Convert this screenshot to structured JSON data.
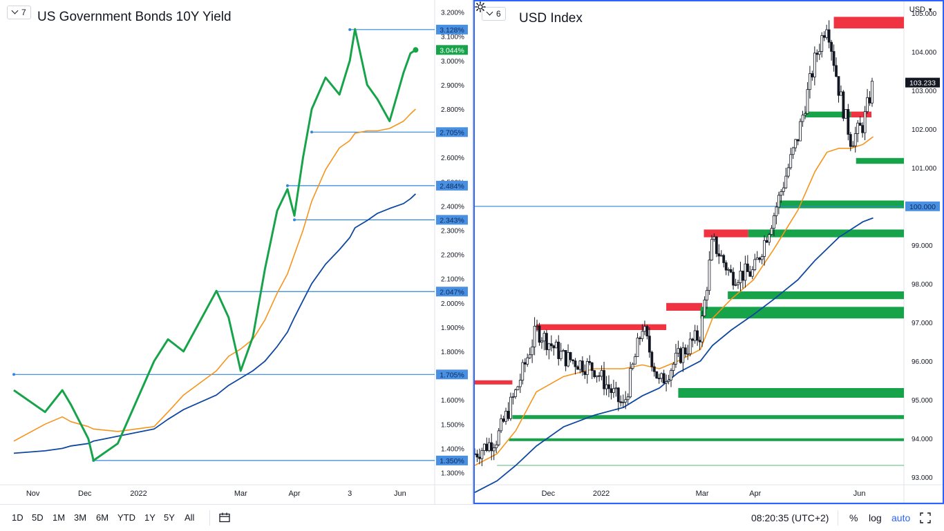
{
  "left_chart": {
    "counter": "7",
    "title": "US Government Bonds 10Y Yield"
  },
  "right_chart": {
    "counter": "6",
    "title": "USD Index",
    "currency": "USD"
  },
  "bottom_bar": {
    "timeframes": [
      "1D",
      "5D",
      "1M",
      "3M",
      "6M",
      "YTD",
      "1Y",
      "5Y",
      "All"
    ],
    "time": "08:20:35 (UTC+2)",
    "percent": "%",
    "log": "log",
    "auto": "auto"
  },
  "colors": {
    "price_line": "#16a34a",
    "ma_fast": "#f7931a",
    "ma_slow": "#0d47a1",
    "level_line": "#2e86de",
    "label_bg": "#4a90e2",
    "resistance": "#ef3340",
    "support": "#16a34a",
    "accent": "#2962ff"
  },
  "chart_data": [
    {
      "type": "line",
      "title": "US Government Bonds 10Y Yield",
      "unit": "%",
      "ylim": [
        1.25,
        3.25
      ],
      "y_ticks": [
        "3.200%",
        "3.100%",
        "3.000%",
        "2.900%",
        "2.800%",
        "2.700%",
        "2.600%",
        "2.500%",
        "2.400%",
        "2.300%",
        "2.200%",
        "2.100%",
        "2.000%",
        "1.900%",
        "1.800%",
        "1.700%",
        "1.600%",
        "1.500%",
        "1.400%",
        "1.300%"
      ],
      "x_ticks": [
        "Nov",
        "Dec",
        "2022",
        "Mar",
        "Apr",
        "3",
        "Jun"
      ],
      "x": [
        "2021-10-21",
        "2021-11-08",
        "2021-11-18",
        "2021-11-23",
        "2021-12-03",
        "2021-12-06",
        "2021-12-20",
        "2022-01-10",
        "2022-01-18",
        "2022-01-27",
        "2022-02-15",
        "2022-02-22",
        "2022-03-01",
        "2022-03-08",
        "2022-03-15",
        "2022-03-22",
        "2022-03-28",
        "2022-04-01",
        "2022-04-06",
        "2022-04-11",
        "2022-04-19",
        "2022-04-27",
        "2022-05-03",
        "2022-05-06",
        "2022-05-13",
        "2022-05-19",
        "2022-05-26",
        "2022-06-03",
        "2022-06-07",
        "2022-06-10"
      ],
      "series": [
        {
          "values": [
            1.64,
            1.55,
            1.64,
            1.58,
            1.44,
            1.35,
            1.42,
            1.76,
            1.85,
            1.8,
            2.05,
            1.94,
            1.72,
            1.86,
            2.14,
            2.38,
            2.47,
            2.36,
            2.6,
            2.8,
            2.93,
            2.86,
            3.0,
            3.13,
            2.9,
            2.84,
            2.75,
            2.95,
            3.03,
            3.044
          ]
        },
        {
          "values": [
            1.43,
            1.5,
            1.53,
            1.51,
            1.49,
            1.48,
            1.47,
            1.49,
            1.55,
            1.62,
            1.72,
            1.78,
            1.81,
            1.85,
            1.93,
            2.04,
            2.12,
            2.2,
            2.3,
            2.42,
            2.55,
            2.64,
            2.67,
            2.7,
            2.71,
            2.71,
            2.72,
            2.75,
            2.78,
            2.8
          ]
        },
        {
          "values": [
            1.38,
            1.39,
            1.4,
            1.41,
            1.42,
            1.43,
            1.45,
            1.48,
            1.52,
            1.56,
            1.62,
            1.66,
            1.69,
            1.72,
            1.76,
            1.82,
            1.88,
            1.94,
            2.01,
            2.08,
            2.16,
            2.22,
            2.27,
            2.31,
            2.34,
            2.37,
            2.39,
            2.41,
            2.43,
            2.45
          ]
        }
      ],
      "levels": [
        "3.128%",
        "2.705%",
        "2.484%",
        "2.343%",
        "2.047%",
        "1.705%",
        "1.350%"
      ],
      "level_values": [
        3.128,
        2.705,
        2.484,
        2.343,
        2.047,
        1.705,
        1.35
      ],
      "last_value": "3.044%"
    },
    {
      "type": "line",
      "title": "USD Index",
      "ylim": [
        92.8,
        105.3
      ],
      "y_ticks": [
        "105.000",
        "104.000",
        "103.000",
        "102.000",
        "101.000",
        "100.000",
        "99.000",
        "98.000",
        "97.000",
        "96.000",
        "95.000",
        "94.000",
        "93.000"
      ],
      "x_ticks": [
        "Dec",
        "2022",
        "Mar",
        "Apr",
        "Jun"
      ],
      "x": [
        "2021-10-19",
        "2021-11-01",
        "2021-11-12",
        "2021-11-24",
        "2021-12-10",
        "2021-12-28",
        "2022-01-14",
        "2022-01-25",
        "2022-02-04",
        "2022-02-15",
        "2022-02-28",
        "2022-03-07",
        "2022-03-18",
        "2022-03-31",
        "2022-04-12",
        "2022-04-26",
        "2022-05-06",
        "2022-05-13",
        "2022-05-20",
        "2022-05-27",
        "2022-06-03",
        "2022-06-09"
      ],
      "series": [
        {
          "values": [
            93.6,
            94.0,
            95.2,
            96.8,
            96.1,
            95.8,
            94.8,
            96.9,
            95.4,
            96.1,
            96.7,
            99.1,
            98.2,
            98.3,
            99.8,
            101.8,
            103.8,
            104.8,
            103.0,
            101.7,
            102.1,
            103.2
          ]
        },
        {
          "values": [
            93.3,
            93.6,
            94.2,
            95.2,
            95.6,
            95.8,
            95.8,
            95.9,
            95.8,
            96.0,
            96.3,
            97.1,
            97.6,
            98.1,
            98.9,
            99.9,
            100.9,
            101.4,
            101.5,
            101.5,
            101.6,
            101.8
          ]
        },
        {
          "values": [
            92.6,
            92.9,
            93.3,
            93.8,
            94.3,
            94.6,
            94.8,
            95.1,
            95.3,
            95.7,
            96.0,
            96.4,
            96.8,
            97.2,
            97.6,
            98.1,
            98.6,
            98.9,
            99.2,
            99.4,
            99.6,
            99.7
          ]
        }
      ],
      "levels": [
        "100.000"
      ],
      "level_values": [
        100.0
      ],
      "resistance_zones": [
        [
          104.9,
          104.6
        ],
        [
          102.45,
          102.3
        ],
        [
          99.4,
          99.2
        ],
        [
          97.5,
          97.3
        ],
        [
          96.95,
          96.8
        ],
        [
          95.5,
          95.4
        ]
      ],
      "support_zones": [
        [
          102.45,
          102.3
        ],
        [
          101.25,
          101.1
        ],
        [
          100.15,
          99.95
        ],
        [
          99.4,
          99.2
        ],
        [
          97.8,
          97.6
        ],
        [
          97.4,
          97.1
        ],
        [
          95.3,
          95.05
        ],
        [
          94.6,
          94.5
        ],
        [
          94.0,
          93.95
        ]
      ],
      "last_value": "103.233"
    }
  ]
}
